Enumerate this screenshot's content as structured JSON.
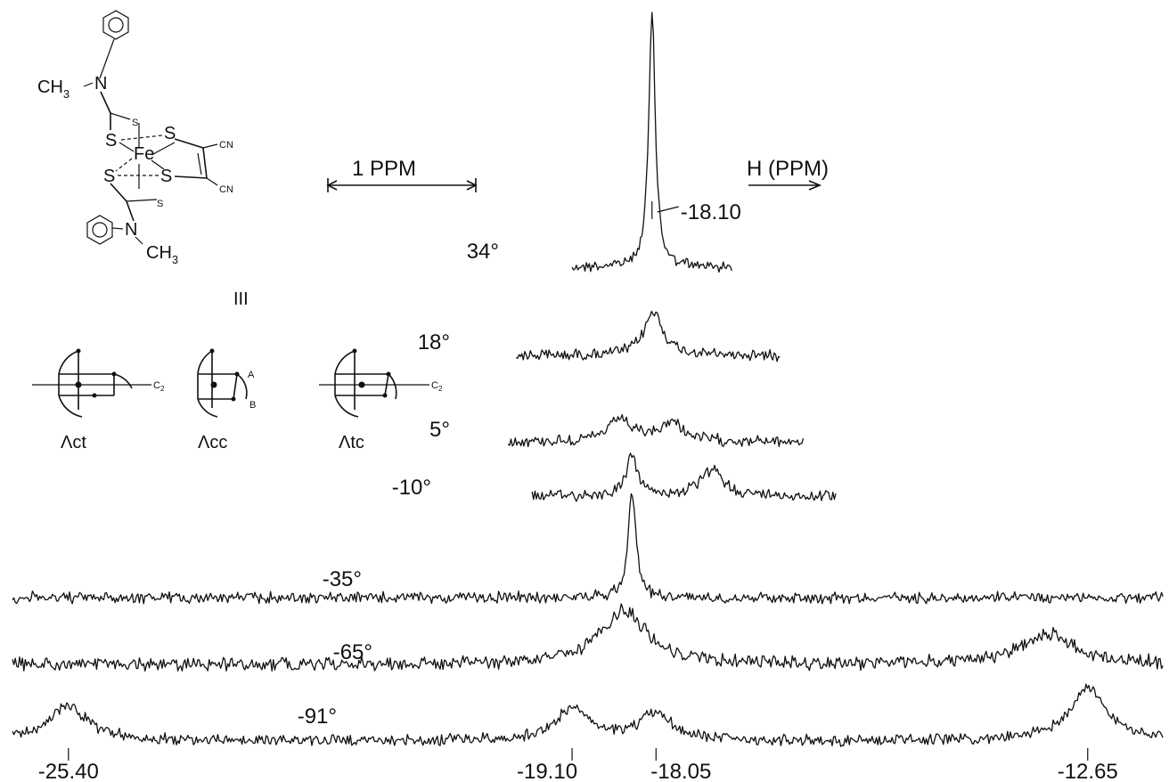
{
  "chart_data": {
    "type": "line",
    "x_unit_label": "H (PPM)",
    "scale_bar_label": "1 PPM",
    "compound_label": "III",
    "molecule": {
      "methyl": "CH",
      "methyl_sub": "3",
      "nitrogen": "N",
      "sulfur": "S",
      "iron": "Fe",
      "cyano": "CN"
    },
    "isomers": [
      {
        "name": "Λct",
        "axis": "C",
        "axis_sub": "2"
      },
      {
        "name": "Λcc",
        "site_a": "A",
        "site_b": "B"
      },
      {
        "name": "Λtc",
        "axis": "C",
        "axis_sub": "2"
      }
    ],
    "peak_labels": [
      "-25.40",
      "-19.10",
      "-18.05",
      "-12.65"
    ],
    "top_peak_label": "-18.10",
    "peak_positions_ppm": [
      -25.4,
      -19.1,
      -18.05,
      -12.65
    ],
    "top_peak_ppm": -18.1,
    "x_range_ppm": [
      -26.1,
      -11.7
    ],
    "series": [
      {
        "temp": "34°",
        "x_range": [
          -19.1,
          -17.1
        ],
        "peaks": [
          {
            "ppm": -18.1,
            "height": 1.0,
            "width": 0.05
          }
        ]
      },
      {
        "temp": "18°",
        "x_range": [
          -19.8,
          -16.5
        ],
        "peaks": [
          {
            "ppm": -18.08,
            "height": 0.35,
            "width": 0.14
          }
        ]
      },
      {
        "temp": "5°",
        "x_range": [
          -19.9,
          -16.2
        ],
        "peaks": [
          {
            "ppm": -18.5,
            "height": 0.28,
            "width": 0.17
          },
          {
            "ppm": -17.85,
            "height": 0.24,
            "width": 0.17
          }
        ]
      },
      {
        "temp": "-10°",
        "x_range": [
          -19.6,
          -15.8
        ],
        "peaks": [
          {
            "ppm": -18.35,
            "height": 0.48,
            "width": 0.09
          },
          {
            "ppm": -17.35,
            "height": 0.32,
            "width": 0.17
          }
        ]
      },
      {
        "temp": "-35°",
        "x_range": [
          -26.1,
          -11.7
        ],
        "peaks": [
          {
            "ppm": -18.35,
            "height": 0.85,
            "width": 0.06
          }
        ]
      },
      {
        "temp": "-65°",
        "x_range": [
          -26.1,
          -11.7
        ],
        "peaks": [
          {
            "ppm": -18.45,
            "height": 0.3,
            "width": 0.35
          },
          {
            "ppm": -13.15,
            "height": 0.17,
            "width": 0.4
          }
        ]
      },
      {
        "temp": "-91°",
        "x_range": [
          -26.1,
          -11.7
        ],
        "peaks": [
          {
            "ppm": -25.4,
            "height": 0.26,
            "width": 0.3
          },
          {
            "ppm": -19.1,
            "height": 0.24,
            "width": 0.25
          },
          {
            "ppm": -18.05,
            "height": 0.2,
            "width": 0.25
          },
          {
            "ppm": -12.65,
            "height": 0.4,
            "width": 0.28
          }
        ]
      }
    ]
  }
}
